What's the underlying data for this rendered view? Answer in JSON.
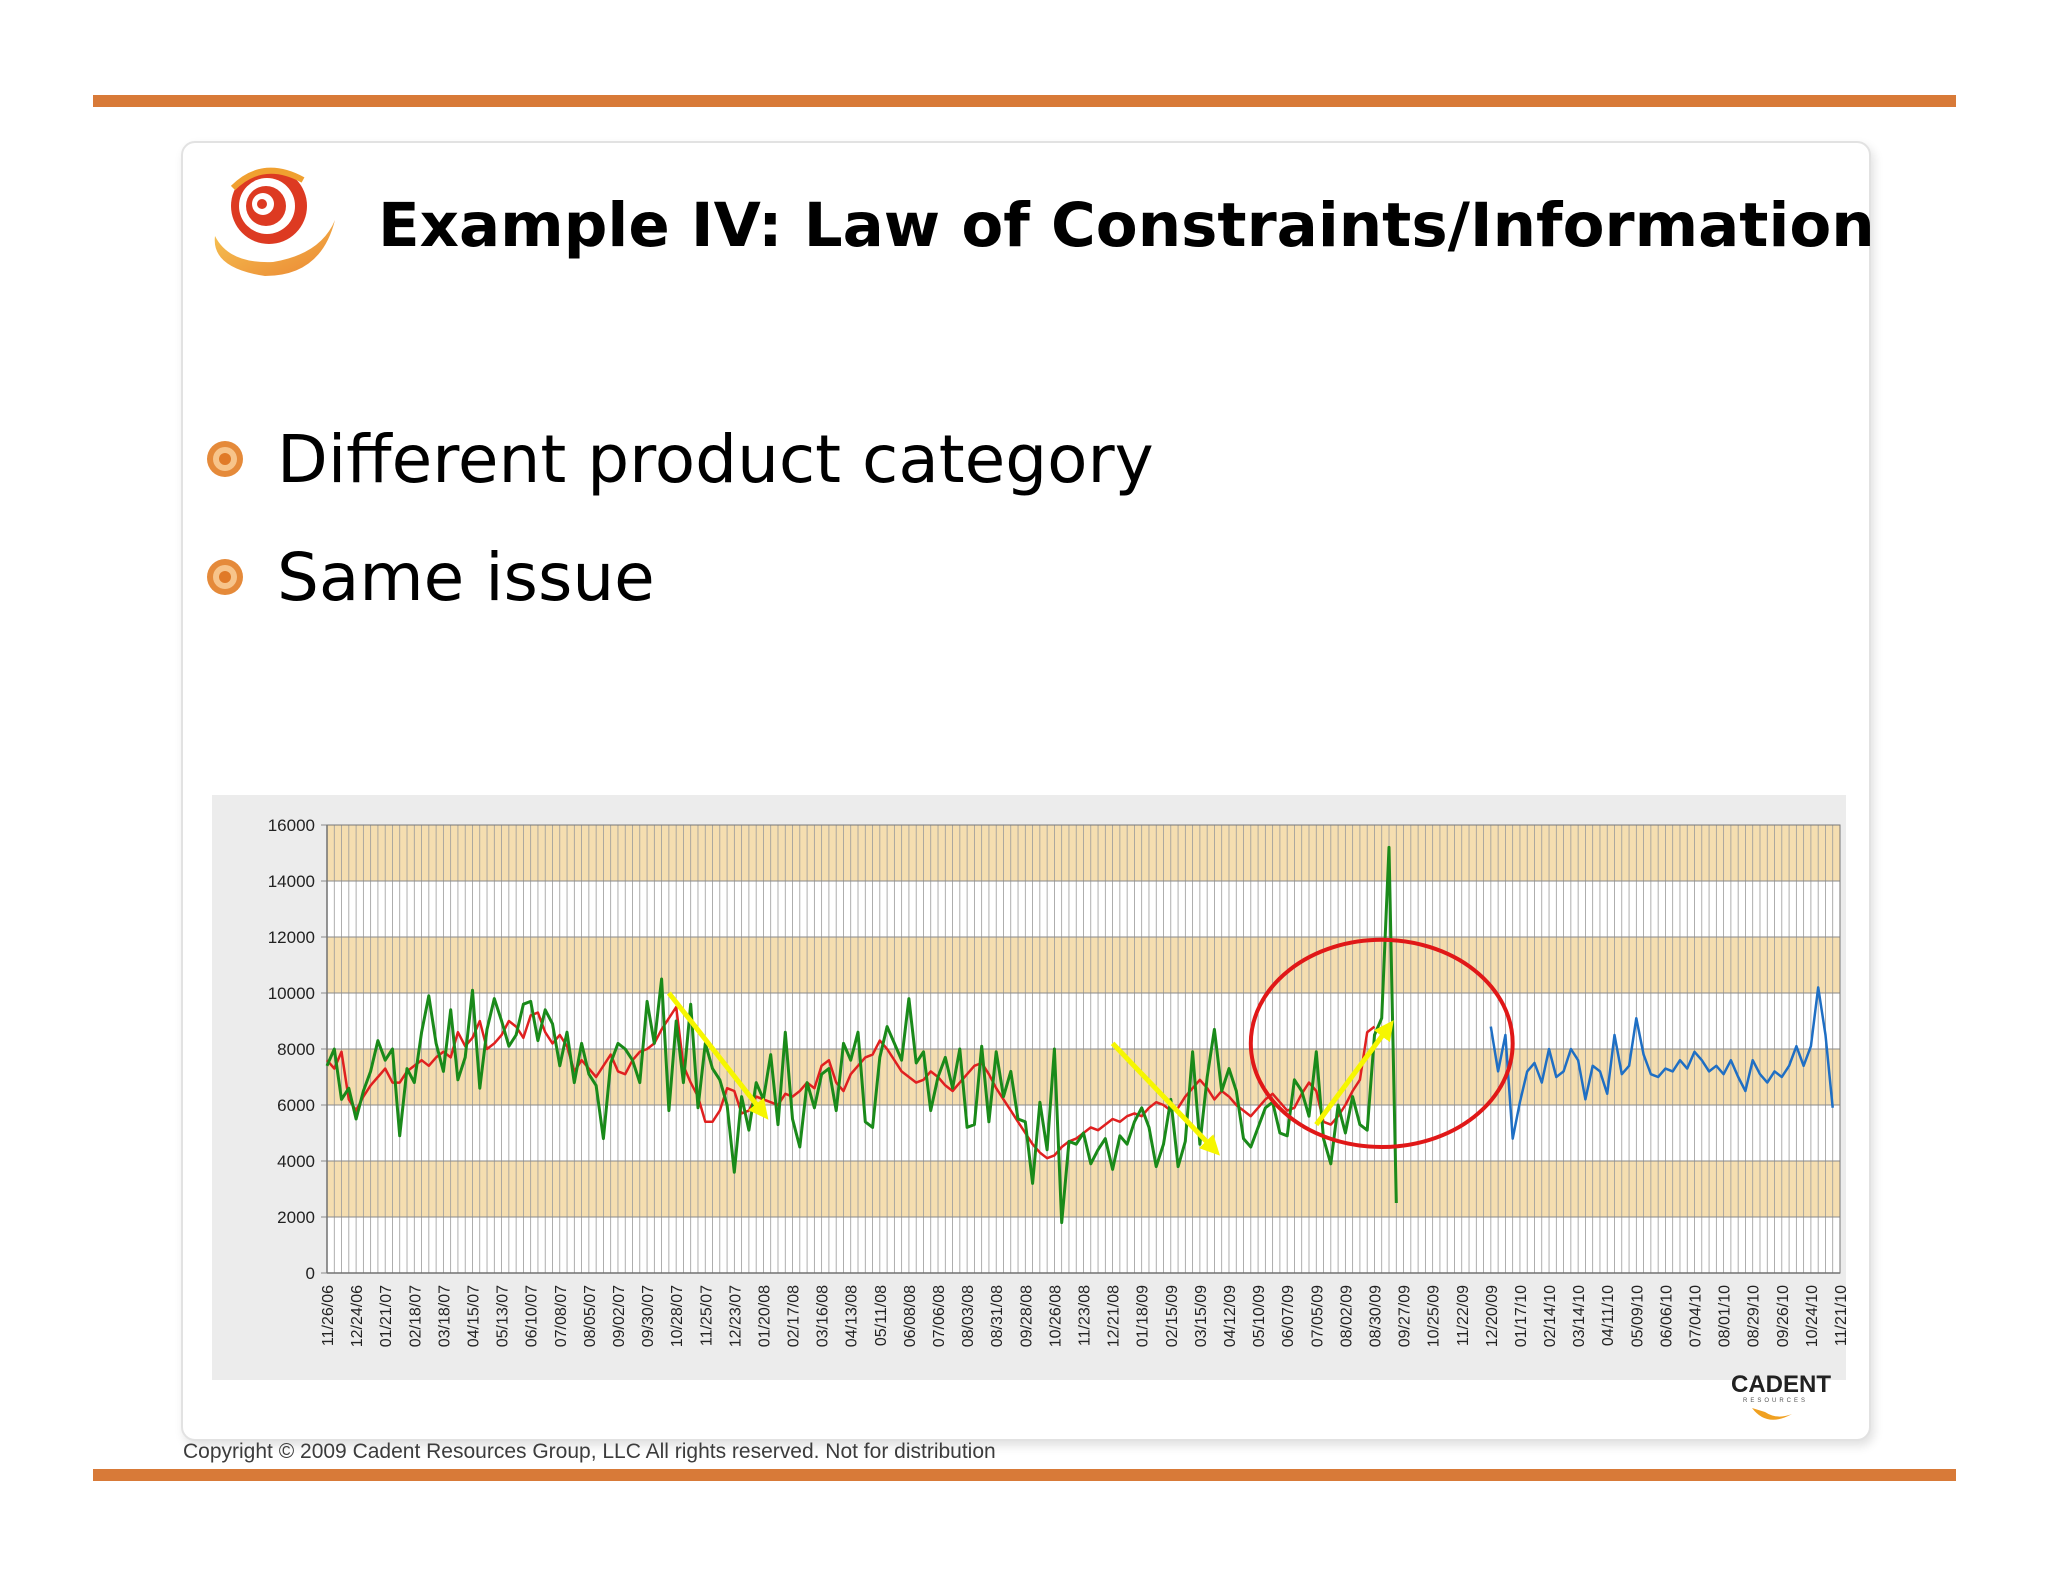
{
  "slide": {
    "title": "Example IV: Law of Constraints/Information",
    "bullets": [
      "Different product category",
      "Same issue"
    ],
    "copyright": "Copyright © 2009 Cadent Resources Group, LLC All rights reserved. Not for distribution",
    "brand_text": "CADENT",
    "brand_subtext": "RESOURCES"
  },
  "colors": {
    "rule": "#d87a38",
    "band": "#f5deb0",
    "actual": "#1a8a1a",
    "forecast": "#e02020",
    "projection": "#1f6fc4",
    "ellipse": "#e01818",
    "arrow": "#f6f600"
  },
  "chart_data": {
    "type": "line",
    "ylim": [
      0,
      16000
    ],
    "yticks": [
      0,
      2000,
      4000,
      6000,
      8000,
      10000,
      12000,
      14000,
      16000
    ],
    "bands": [
      [
        2000,
        4000
      ],
      [
        6000,
        8000
      ],
      [
        10000,
        12000
      ],
      [
        14000,
        16000
      ]
    ],
    "x_tick_labels": [
      "11/26/06",
      "12/24/06",
      "01/21/07",
      "02/18/07",
      "03/18/07",
      "04/15/07",
      "05/13/07",
      "06/10/07",
      "07/08/07",
      "08/05/07",
      "09/02/07",
      "09/30/07",
      "10/28/07",
      "11/25/07",
      "12/23/07",
      "01/20/08",
      "02/17/08",
      "03/16/08",
      "04/13/08",
      "05/11/08",
      "06/08/08",
      "07/06/08",
      "08/03/08",
      "08/31/08",
      "09/28/08",
      "10/26/08",
      "11/23/08",
      "12/21/08",
      "01/18/09",
      "02/15/09",
      "03/15/09",
      "04/12/09",
      "05/10/09",
      "06/07/09",
      "07/05/09",
      "08/02/09",
      "08/30/09",
      "09/27/09",
      "10/25/09",
      "11/22/09",
      "12/20/09",
      "01/17/10",
      "02/14/10",
      "03/14/10",
      "04/11/10",
      "05/09/10",
      "06/06/10",
      "07/04/10",
      "08/01/10",
      "08/29/10",
      "09/26/10",
      "10/24/10",
      "11/21/10"
    ],
    "series": [
      {
        "role": "actual",
        "start_index": 0,
        "values": [
          7400,
          8000,
          6200,
          6600,
          5500,
          6500,
          7200,
          8300,
          7600,
          8000,
          4900,
          7300,
          6800,
          8600,
          9900,
          8200,
          7200,
          9400,
          6900,
          7700,
          10100,
          6600,
          8700,
          9800,
          9000,
          8100,
          8500,
          9600,
          9700,
          8300,
          9400,
          8900,
          7400,
          8600,
          6800,
          8200,
          7100,
          6700,
          4800,
          7500,
          8200,
          8000,
          7600,
          6800,
          9700,
          8200,
          10500,
          5800,
          9000,
          6800,
          9600,
          5900,
          8200,
          7300,
          6900,
          6000,
          3600,
          6300,
          5100,
          6800,
          6200,
          7800,
          5300,
          8600,
          5500,
          4500,
          6800,
          5900,
          7100,
          7300,
          5800,
          8200,
          7600,
          8600,
          5400,
          5200,
          7700,
          8800,
          8200,
          7600,
          9800,
          7500,
          7900,
          5800,
          7000,
          7700,
          6600,
          8000,
          5200,
          5300,
          8100,
          5400,
          7900,
          6300,
          7200,
          5500,
          5400,
          3200,
          6100,
          4400,
          8000,
          1800,
          4700,
          4600,
          5000,
          3900,
          4400,
          4800,
          3700,
          4900,
          4600,
          5400,
          5900,
          5200,
          3800,
          4600,
          6200,
          3800,
          4700,
          7900,
          4600,
          7000,
          8700,
          6500,
          7300,
          6500,
          4800,
          4500,
          5200,
          5900,
          6100,
          5000,
          4900,
          6900,
          6500,
          5600,
          7900,
          4800,
          3900,
          6000,
          5000,
          6300,
          5300,
          5100,
          8500,
          9100,
          15200,
          2500
        ]
      },
      {
        "role": "forecast",
        "start_index": 0,
        "values": [
          7600,
          7300,
          7900,
          6200,
          5800,
          6300,
          6700,
          7000,
          7300,
          6800,
          6800,
          7200,
          7400,
          7600,
          7400,
          7700,
          7900,
          7700,
          8600,
          8100,
          8400,
          9000,
          8000,
          8200,
          8500,
          9000,
          8800,
          8400,
          9200,
          9300,
          8600,
          8200,
          8500,
          8100,
          7200,
          7600,
          7300,
          7000,
          7400,
          7800,
          7200,
          7100,
          7600,
          7900,
          8000,
          8200,
          8700,
          9100,
          9500,
          7400,
          6800,
          6300,
          5400,
          5400,
          5800,
          6600,
          6500,
          5700,
          5800,
          6300,
          6200,
          6100,
          6000,
          6400,
          6300,
          6500,
          6800,
          6600,
          7400,
          7600,
          6800,
          6500,
          7100,
          7400,
          7700,
          7800,
          8300,
          8000,
          7600,
          7200,
          7000,
          6800,
          6900,
          7200,
          7000,
          6700,
          6500,
          6800,
          7100,
          7400,
          7500,
          7100,
          6600,
          6200,
          5800,
          5400,
          5000,
          4600,
          4300,
          4100,
          4200,
          4500,
          4700,
          4800,
          5000,
          5200,
          5100,
          5300,
          5500,
          5400,
          5600,
          5700,
          5600,
          5900,
          6100,
          6000,
          5800,
          5900,
          6300,
          6600,
          6900,
          6600,
          6200,
          6500,
          6300,
          6000,
          5800,
          5600,
          5900,
          6200,
          6400,
          6100,
          5800,
          5900,
          6400,
          6800,
          6500,
          5400,
          5300,
          5600,
          6000,
          6500,
          6900,
          8600,
          8800
        ]
      },
      {
        "role": "projection",
        "start_index": 160,
        "values": [
          8800,
          7200,
          8500,
          4800,
          6100,
          7200,
          7500,
          6800,
          8000,
          7000,
          7200,
          8000,
          7600,
          6200,
          7400,
          7200,
          6400,
          8500,
          7100,
          7400,
          9100,
          7800,
          7100,
          7000,
          7300,
          7200,
          7600,
          7300,
          7900,
          7600,
          7200,
          7400,
          7100,
          7600,
          7000,
          6500,
          7600,
          7100,
          6800,
          7200,
          7000,
          7400,
          8100,
          7400,
          8100,
          10200,
          8500,
          5900
        ]
      }
    ]
  }
}
